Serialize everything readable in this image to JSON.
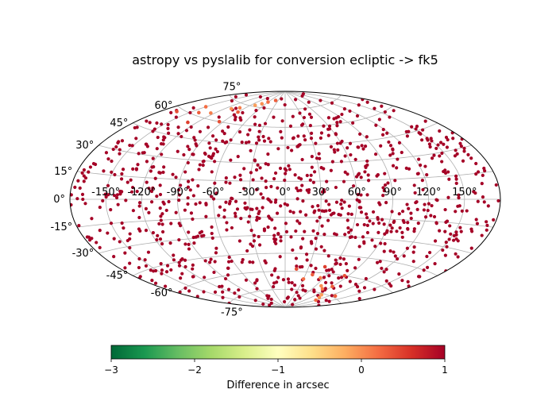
{
  "chart_data": {
    "type": "scatter",
    "projection": "aitoff",
    "title": "astropy vs pyslalib for conversion ecliptic -> fk5",
    "grid": true,
    "lon_ticks": [
      -150,
      -120,
      -90,
      -60,
      -30,
      0,
      30,
      60,
      90,
      120,
      150
    ],
    "lon_tick_labels": [
      "-150°",
      "-120°",
      "-90°",
      "-60°",
      "-30°",
      "0°",
      "30°",
      "60°",
      "90°",
      "120°",
      "150°"
    ],
    "lat_ticks": [
      -75,
      -60,
      -45,
      -30,
      -15,
      0,
      15,
      30,
      45,
      60,
      75
    ],
    "lat_tick_labels": [
      "-75°",
      "-60°",
      "-45°",
      "-30°",
      "-15°",
      "0°",
      "15°",
      "30°",
      "45°",
      "60°",
      "75°"
    ],
    "colorbar": {
      "label": "Difference in arcsec",
      "range": [
        -3,
        1
      ],
      "ticks": [
        -3,
        -2,
        -1,
        0,
        1
      ],
      "tick_labels": [
        "−3",
        "−2",
        "−1",
        "0",
        "1"
      ],
      "colormap": "RdYlGn_r",
      "colors": [
        "#006837",
        "#1a9850",
        "#66bd63",
        "#a6d96a",
        "#d9ef8b",
        "#ffffbf",
        "#fee08b",
        "#fdae61",
        "#f46d43",
        "#d73027",
        "#a50026"
      ]
    },
    "points_summary": {
      "count": 1000,
      "typical_difference": 1.0,
      "lon_range_deg": [
        -180,
        180
      ],
      "lat_range_deg": [
        -90,
        90
      ]
    },
    "highlight_points": [
      {
        "lon": -150,
        "lat": 66,
        "value": 0.2
      },
      {
        "lon": -140,
        "lat": 62,
        "value": 0.3
      },
      {
        "lon": -125,
        "lat": 64,
        "value": 0.1
      },
      {
        "lon": -110,
        "lat": 70,
        "value": 0.0
      },
      {
        "lon": -100,
        "lat": 72,
        "value": 0.1
      },
      {
        "lon": -90,
        "lat": 69,
        "value": 0.3
      },
      {
        "lon": -80,
        "lat": 76,
        "value": -0.1
      },
      {
        "lon": -70,
        "lat": 78,
        "value": 0.0
      },
      {
        "lon": -60,
        "lat": 80,
        "value": 0.2
      },
      {
        "lon": -165,
        "lat": 58,
        "value": 0.4
      },
      {
        "lon": -130,
        "lat": 55,
        "value": 0.5
      },
      {
        "lon": -95,
        "lat": 60,
        "value": 0.4
      },
      {
        "lon": 30,
        "lat": -66,
        "value": 0.2
      },
      {
        "lon": 40,
        "lat": -62,
        "value": 0.3
      },
      {
        "lon": 55,
        "lat": -64,
        "value": 0.1
      },
      {
        "lon": 70,
        "lat": -70,
        "value": 0.0
      },
      {
        "lon": 80,
        "lat": -72,
        "value": 0.1
      },
      {
        "lon": 90,
        "lat": -69,
        "value": 0.3
      },
      {
        "lon": 100,
        "lat": -76,
        "value": -0.1
      },
      {
        "lon": 110,
        "lat": -78,
        "value": 0.0
      },
      {
        "lon": 120,
        "lat": -80,
        "value": 0.2
      },
      {
        "lon": 15,
        "lat": -58,
        "value": 0.4
      },
      {
        "lon": 50,
        "lat": -55,
        "value": 0.5
      },
      {
        "lon": 85,
        "lat": -60,
        "value": 0.4
      },
      {
        "lon": 130,
        "lat": -74,
        "value": 0.3
      },
      {
        "lon": -40,
        "lat": 82,
        "value": 0.3
      }
    ]
  }
}
